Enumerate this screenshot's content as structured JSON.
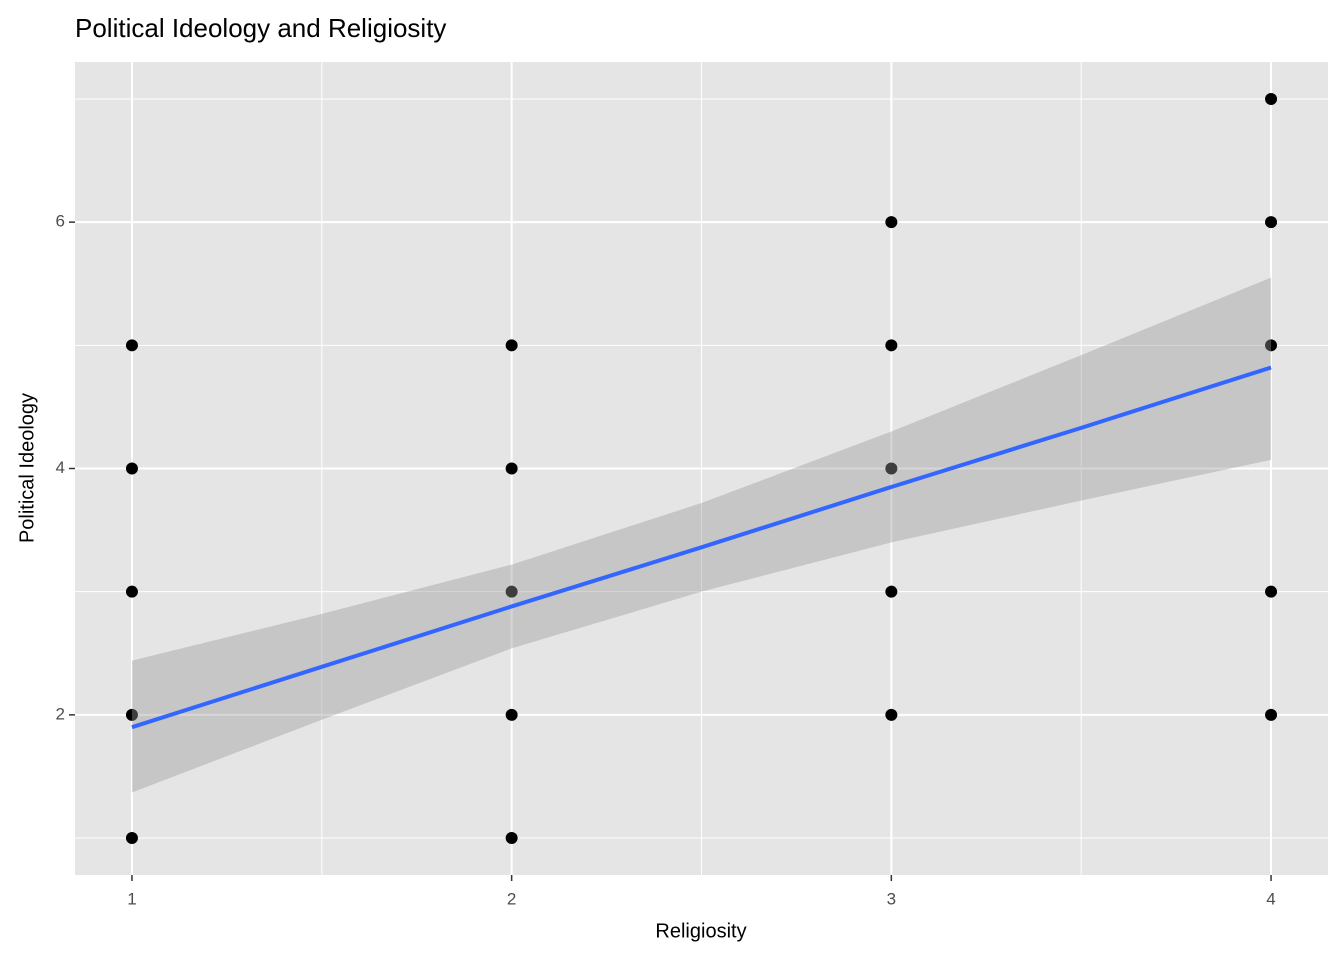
{
  "chart_data": {
    "type": "scatter",
    "title": "Political Ideology and Religiosity",
    "x_label": "Religiosity",
    "y_label": "Political Ideology",
    "color": "#000000",
    "x": [
      1,
      1,
      1,
      1,
      1,
      2,
      2,
      2,
      2,
      2,
      3,
      3,
      3,
      3,
      3,
      4,
      4,
      4,
      4,
      4
    ],
    "y": [
      5,
      4,
      3,
      2,
      1,
      5,
      4,
      3,
      2,
      1,
      6,
      5,
      4,
      3,
      2,
      7,
      6,
      5,
      3,
      2
    ],
    "xlim": [
      0.85,
      4.15
    ],
    "ylim": [
      0.7,
      7.3
    ],
    "xticks": [
      1,
      2,
      3,
      4
    ],
    "yticks": [
      2,
      4,
      6
    ],
    "xminor": [
      1.5,
      2.5,
      3.5
    ],
    "yminor": [
      1,
      3,
      5,
      7
    ],
    "grid": true,
    "smooth": {
      "color": "#3366ff",
      "band_color": "#999999",
      "x": [
        1,
        1.5,
        2,
        2.5,
        3,
        3.5,
        4
      ],
      "y": [
        1.9,
        2.39,
        2.88,
        3.36,
        3.85,
        4.33,
        4.82
      ],
      "ymin": [
        1.37,
        1.96,
        2.54,
        3.0,
        3.4,
        3.74,
        4.07
      ],
      "ymax": [
        2.44,
        2.82,
        3.22,
        3.72,
        4.3,
        4.92,
        5.55
      ]
    }
  }
}
